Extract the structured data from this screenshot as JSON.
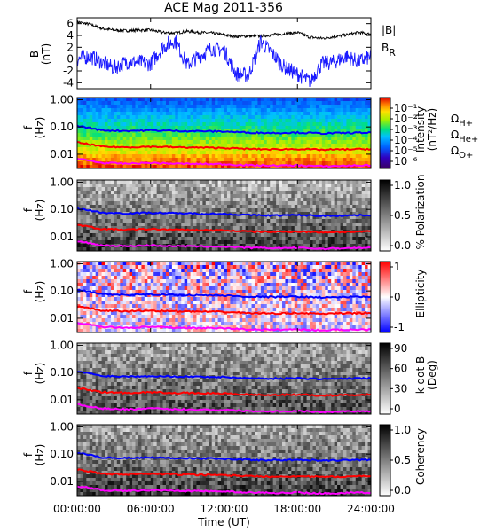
{
  "title": "ACE Mag 2011-356",
  "colors": {
    "B_total": "#000000",
    "B_R": "#1a1aff",
    "omega_H": "#0000ff",
    "omega_He": "#ff0000",
    "omega_O": "#ff00ff"
  },
  "chart_data": [
    {
      "type": "line",
      "panel": "magnetic-field",
      "ylabel": "B\n(nT)",
      "ylim": [
        -5,
        7
      ],
      "yticks": [
        "6",
        "4",
        "2",
        "0",
        "-2",
        "-4"
      ],
      "xlim": [
        0,
        24
      ],
      "series": [
        {
          "name": "|B|",
          "x": [
            0,
            1,
            2,
            3,
            4,
            5,
            6,
            7,
            8,
            9,
            10,
            11,
            12,
            13,
            14,
            15,
            16,
            17,
            18,
            19,
            20,
            21,
            22,
            23,
            24
          ],
          "values": [
            6.3,
            5.9,
            5.2,
            4.9,
            4.8,
            4.9,
            4.9,
            4.5,
            4.4,
            4.7,
            4.5,
            4.4,
            4.1,
            3.8,
            3.9,
            3.9,
            4.1,
            4.3,
            4.5,
            3.7,
            3.5,
            3.8,
            4.1,
            4.5,
            4.2
          ]
        },
        {
          "name": "B_R",
          "x": [
            0,
            1,
            2,
            3,
            4,
            5,
            6,
            7,
            8,
            9,
            10,
            11,
            12,
            13,
            14,
            15,
            16,
            17,
            18,
            19,
            20,
            21,
            22,
            23,
            24
          ],
          "values": [
            0,
            0.5,
            -0.5,
            -1.5,
            -0.5,
            -0.5,
            -0.8,
            2.0,
            3.2,
            -1.0,
            0.5,
            1.8,
            1.5,
            -2.5,
            -2.8,
            3.0,
            0.8,
            -1.5,
            -2.5,
            -3.8,
            -0.8,
            -0.5,
            0.5,
            -0.5,
            0.5
          ]
        }
      ]
    },
    {
      "type": "heatmap",
      "panel": "intensity",
      "ylabel": "f\n(Hz)",
      "yticks": [
        "1.00",
        "0.10",
        "0.01"
      ],
      "colorbar_label": "Intensity\n(nT²/Hz)",
      "colorbar_ticks": [
        "10⁻¹",
        "10⁻²",
        "10⁻³",
        "10⁻⁴",
        "10⁻⁵",
        "10⁻⁶"
      ],
      "legend": [
        "ΩH+",
        "ΩHe+",
        "ΩO+"
      ]
    },
    {
      "type": "heatmap",
      "panel": "polarization",
      "ylabel": "f\n(Hz)",
      "yticks": [
        "1.00",
        "0.10",
        "0.01"
      ],
      "colorbar_label": "% Polarization",
      "colorbar_ticks": [
        "1.0",
        "0.5",
        "0.0"
      ]
    },
    {
      "type": "heatmap",
      "panel": "ellipticity",
      "ylabel": "f\n(Hz)",
      "yticks": [
        "1.00",
        "0.10",
        "0.01"
      ],
      "colorbar_label": "Ellipticity",
      "colorbar_ticks": [
        "1",
        "0",
        "-1"
      ]
    },
    {
      "type": "heatmap",
      "panel": "k-dot-b",
      "ylabel": "f\n(Hz)",
      "yticks": [
        "1.00",
        "0.10",
        "0.01"
      ],
      "colorbar_label": "k dot B\n(Deg)",
      "colorbar_ticks": [
        "90",
        "60",
        "30",
        "0"
      ]
    },
    {
      "type": "heatmap",
      "panel": "coherency",
      "ylabel": "f\n(Hz)",
      "yticks": [
        "1.00",
        "0.10",
        "0.01"
      ],
      "colorbar_label": "Coherency",
      "colorbar_ticks": [
        "1.0",
        "0.5",
        "0.0"
      ]
    }
  ],
  "gyro_lines": {
    "x": [
      0,
      2,
      4,
      6,
      8,
      10,
      12,
      14,
      16,
      18,
      20,
      22,
      24
    ],
    "omega_H": [
      0.11,
      0.075,
      0.072,
      0.075,
      0.072,
      0.07,
      0.068,
      0.062,
      0.06,
      0.062,
      0.058,
      0.06,
      0.062
    ],
    "omega_He": [
      0.027,
      0.019,
      0.018,
      0.019,
      0.018,
      0.0175,
      0.017,
      0.0155,
      0.015,
      0.0155,
      0.0145,
      0.015,
      0.0155
    ],
    "omega_O": [
      0.0068,
      0.0048,
      0.0045,
      0.0048,
      0.0045,
      0.0044,
      0.0043,
      0.0039,
      0.0038,
      0.0039,
      0.0036,
      0.0038,
      0.0039
    ]
  },
  "xaxis": {
    "ticks": [
      "00:00:00",
      "06:00:00",
      "12:00:00",
      "18:00:00",
      "24:00:00"
    ],
    "label": "Time (UT)"
  }
}
